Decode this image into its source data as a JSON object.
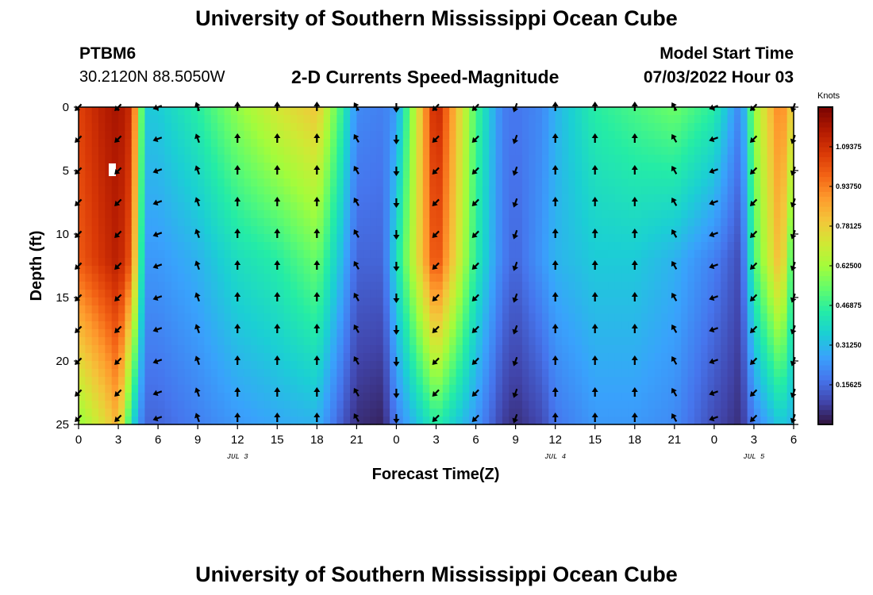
{
  "header": {
    "title": "University of Southern Mississippi Ocean Cube",
    "station": "PTBM6",
    "coordinates": "30.2120N  88.5050W",
    "subtitle": "2-D Currents Speed-Magnitude",
    "model_start_label": "Model Start Time",
    "model_start_value": "07/03/2022 Hour 03"
  },
  "footer": {
    "title": "University of Southern Mississippi Ocean Cube"
  },
  "colors": {
    "palette": [
      "#30123b",
      "#4145ab",
      "#4675ed",
      "#39a2fc",
      "#1bcfd4",
      "#24eca6",
      "#61fc6c",
      "#a4fc3b",
      "#d1e834",
      "#f3c63a",
      "#fe9b2d",
      "#f36315",
      "#d93806",
      "#b11901",
      "#7a0402"
    ]
  },
  "chart_data": {
    "type": "heatmap",
    "title": "2-D Currents Speed-Magnitude",
    "xlabel": "Forecast Time(Z)",
    "ylabel": "Depth (ft)",
    "x_unit": "hours since 07/03/2022 00Z",
    "xlim": [
      0,
      54
    ],
    "ylim": [
      0,
      25
    ],
    "y_inverted": true,
    "x_tick_values": [
      0,
      3,
      6,
      9,
      12,
      15,
      18,
      21,
      24,
      27,
      30,
      33,
      36,
      39,
      42,
      45,
      48,
      51,
      54
    ],
    "x_tick_labels": [
      "0",
      "3",
      "6",
      "9",
      "12",
      "15",
      "18",
      "21",
      "0",
      "3",
      "6",
      "9",
      "12",
      "15",
      "18",
      "21",
      "0",
      "3",
      "6"
    ],
    "y_tick_values": [
      0,
      5,
      10,
      15,
      20,
      25
    ],
    "y_tick_labels": [
      "0",
      "5",
      "10",
      "15",
      "20",
      "25"
    ],
    "date_labels": [
      {
        "text": "JUL 3",
        "x": 12
      },
      {
        "text": "JUL 4",
        "x": 36
      },
      {
        "text": "JUL 5",
        "x": 51
      }
    ],
    "colorbar": {
      "label": "Knots",
      "range": [
        0,
        1.25
      ],
      "tick_values": [
        1.09375,
        0.9375,
        0.78125,
        0.625,
        0.46875,
        0.3125,
        0.15625
      ],
      "tick_labels": [
        "1.09375",
        "0.93750",
        "0.78125",
        "0.62500",
        "0.46875",
        "0.31250",
        "0.15625"
      ]
    },
    "speed_profiles": {
      "description": "Approximate current speed (knots) by forecast hour at surface (0 ft), mid (12 ft) and bottom (24 ft)",
      "hours": [
        0,
        2,
        3,
        4,
        5,
        6,
        9,
        12,
        15,
        18,
        20,
        21,
        23,
        24,
        27,
        30,
        32,
        33,
        35,
        36,
        39,
        42,
        45,
        48,
        50,
        51,
        53,
        54
      ],
      "surface": [
        1.05,
        1.15,
        1.18,
        1.1,
        0.35,
        0.35,
        0.45,
        0.6,
        0.72,
        0.8,
        0.45,
        0.22,
        0.2,
        0.25,
        1.15,
        0.5,
        0.2,
        0.18,
        0.22,
        0.3,
        0.45,
        0.5,
        0.55,
        0.45,
        0.2,
        0.6,
        0.95,
        0.75
      ],
      "mid": [
        1.0,
        1.1,
        1.15,
        1.0,
        0.25,
        0.25,
        0.3,
        0.4,
        0.45,
        0.55,
        0.3,
        0.15,
        0.15,
        0.4,
        1.05,
        0.45,
        0.2,
        0.15,
        0.25,
        0.3,
        0.35,
        0.35,
        0.3,
        0.2,
        0.1,
        0.5,
        0.85,
        0.45
      ],
      "bottom": [
        0.6,
        0.75,
        0.85,
        0.4,
        0.15,
        0.15,
        0.2,
        0.25,
        0.28,
        0.3,
        0.12,
        0.05,
        0.03,
        0.2,
        0.45,
        0.25,
        0.08,
        0.05,
        0.1,
        0.18,
        0.25,
        0.25,
        0.22,
        0.1,
        0.05,
        0.2,
        0.35,
        0.3
      ]
    },
    "vector_columns": {
      "description": "Arrow direction (degrees clockwise from north) per forecast hour at each depth row",
      "hours": [
        0,
        3,
        6,
        9,
        12,
        15,
        18,
        21,
        24,
        27,
        30,
        33,
        36,
        39,
        42,
        45,
        48,
        51,
        54
      ],
      "depths": [
        0,
        2.5,
        5,
        7.5,
        10,
        12.5,
        15,
        17.5,
        20,
        22.5,
        24.5
      ],
      "directions": [
        225,
        225,
        250,
        340,
        0,
        0,
        0,
        330,
        180,
        225,
        225,
        200,
        0,
        0,
        0,
        330,
        250,
        225,
        200
      ]
    }
  }
}
